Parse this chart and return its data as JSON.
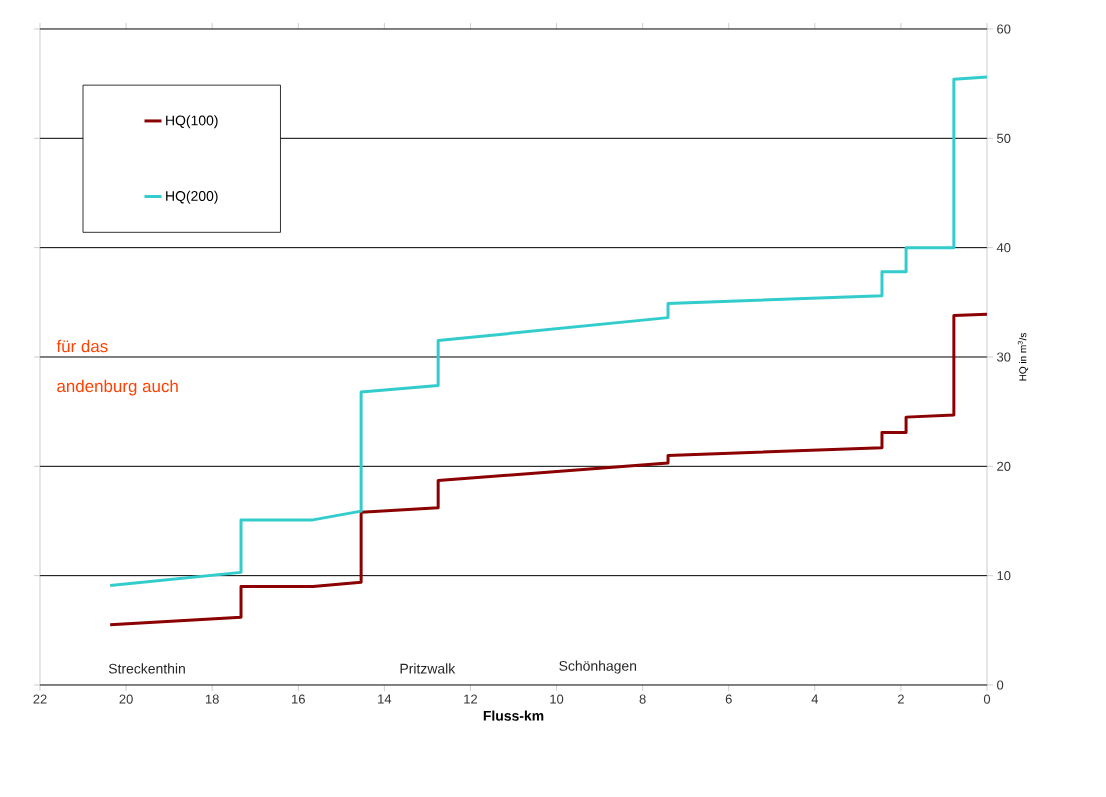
{
  "chart_data": {
    "type": "line",
    "xlabel": "Fluss-km",
    "ylabel": "HQ in m$^{3}$/s",
    "series": [
      {
        "name": "HQ(100)",
        "color": "#8b0000",
        "x": [
          20.37,
          17.33,
          17.33,
          15.66,
          14.54,
          14.54,
          12.75,
          12.75,
          7.41,
          7.41,
          2.44,
          2.44,
          1.88,
          1.88,
          0.77,
          0.77,
          0
        ],
        "values": [
          5.5,
          6.2,
          9.0,
          9.0,
          9.4,
          15.8,
          16.2,
          18.7,
          20.3,
          21.0,
          21.7,
          23.1,
          23.1,
          24.5,
          24.7,
          33.8,
          33.9
        ]
      },
      {
        "name": "HQ(200)",
        "color": "#33cccc",
        "x": [
          20.37,
          17.33,
          17.33,
          15.66,
          14.54,
          14.54,
          12.75,
          12.75,
          7.41,
          7.41,
          2.44,
          2.44,
          1.88,
          1.88,
          0.77,
          0.77,
          0
        ],
        "values": [
          9.1,
          10.3,
          15.1,
          15.1,
          15.9,
          26.8,
          27.4,
          31.5,
          33.6,
          34.9,
          35.6,
          37.8,
          37.8,
          40.0,
          40.0,
          55.4,
          55.6
        ]
      }
    ],
    "xlim": [
      22,
      0
    ],
    "xticks": [
      0,
      2,
      4,
      6,
      8,
      10,
      12,
      14,
      16,
      18,
      20,
      22
    ],
    "ylim": [
      0,
      60
    ],
    "yticks": [
      0,
      10,
      20,
      30,
      40,
      50,
      60
    ],
    "grid": "y",
    "legend": "top left",
    "line_style": "solid",
    "marker": "none",
    "annotations": [
      "Streckenthin",
      "Pritzwalk",
      "Schönhagen",
      "für das",
      "andenburg auch"
    ]
  }
}
